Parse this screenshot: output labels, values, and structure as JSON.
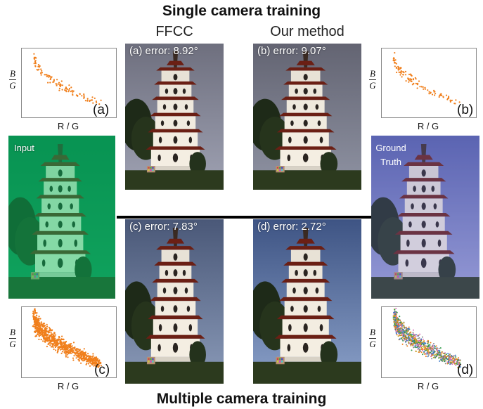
{
  "titles": {
    "top": "Single camera training",
    "bottom": "Multiple camera training"
  },
  "columns": {
    "left": "FFCC",
    "right": "Our method"
  },
  "images": {
    "a": "(a) error: 8.92°",
    "b": "(b) error: 9.07°",
    "c": "(c) error: 7.83°",
    "d": "(d) error: 2.72°",
    "input": "Input",
    "ground_truth_line1": "Ground",
    "ground_truth_line2": "Truth"
  },
  "plots": {
    "xlabel": "R / G",
    "ylabel_num": "B",
    "ylabel_den": "G",
    "tags": {
      "a": "(a)",
      "b": "(b)",
      "c": "(c)",
      "d": "(d)"
    }
  },
  "colors": {
    "scatter_orange": "#f07f1c",
    "divider": "#000000"
  }
}
